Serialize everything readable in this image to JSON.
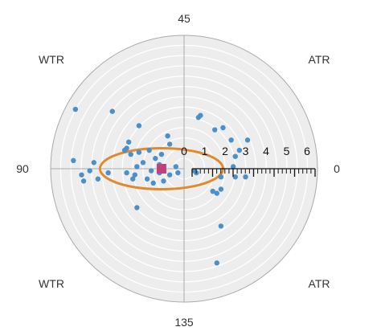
{
  "chart_data": {
    "type": "scatter",
    "title": "",
    "coordinate_system": "polar",
    "radial_ticks": [
      "0",
      "1",
      "2",
      "3",
      "4",
      "5",
      "6"
    ],
    "angle_labels": {
      "top": "45",
      "bottom": "135",
      "left": "90",
      "right": "0"
    },
    "corner_labels": {
      "top_left": "WTR",
      "top_right": "ATR",
      "bottom_left": "WTR",
      "bottom_right": "ATR"
    },
    "colors": {
      "background_disc": "#EDEDED",
      "grid_ring": "#FFFFFF",
      "outer_ring": "#AAAAAA",
      "points": "#4A90C9",
      "centroid": "#C0407C",
      "ellipse": "#E08A30",
      "axis": "#111111"
    },
    "points": [
      [
        -5.3,
        2.9
      ],
      [
        -3.5,
        2.8
      ],
      [
        -2.2,
        2.1
      ],
      [
        -2.7,
        1.3
      ],
      [
        -2.8,
        1.0
      ],
      [
        -2.9,
        0.9
      ],
      [
        -2.6,
        0.7
      ],
      [
        -2.2,
        0.8
      ],
      [
        -1.7,
        0.9
      ],
      [
        -1.4,
        0.5
      ],
      [
        -1.1,
        0.7
      ],
      [
        -0.7,
        1.2
      ],
      [
        -0.8,
        1.6
      ],
      [
        -2.0,
        0.3
      ],
      [
        -2.3,
        0.1
      ],
      [
        -2.4,
        -0.3
      ],
      [
        -2.5,
        -0.5
      ],
      [
        -2.8,
        -0.2
      ],
      [
        -1.8,
        -0.5
      ],
      [
        -1.6,
        -0.1
      ],
      [
        -1.2,
        -0.2
      ],
      [
        -0.4,
        0.1
      ],
      [
        -0.3,
        -0.2
      ],
      [
        -0.7,
        -0.3
      ],
      [
        -1.0,
        -0.6
      ],
      [
        -1.5,
        -0.7
      ],
      [
        -1.2,
        0.2
      ],
      [
        -5.4,
        0.4
      ],
      [
        -4.4,
        0.3
      ],
      [
        -4.6,
        -0.1
      ],
      [
        -5.0,
        -0.3
      ],
      [
        -4.9,
        -0.6
      ],
      [
        -4.2,
        -0.5
      ],
      [
        -3.7,
        -0.2
      ],
      [
        -2.3,
        -1.9
      ],
      [
        0.6,
        -0.2
      ],
      [
        0.5,
        -0.1
      ],
      [
        0.7,
        2.5
      ],
      [
        0.8,
        2.6
      ],
      [
        1.5,
        1.9
      ],
      [
        1.9,
        2.0
      ],
      [
        2.3,
        1.4
      ],
      [
        2.5,
        0.6
      ],
      [
        2.7,
        0.9
      ],
      [
        3.1,
        1.4
      ],
      [
        2.4,
        0.1
      ],
      [
        1.8,
        -0.4
      ],
      [
        1.8,
        -1.0
      ],
      [
        1.4,
        -1.1
      ],
      [
        1.6,
        -1.2
      ],
      [
        2.5,
        -0.4
      ],
      [
        3.0,
        -0.4
      ],
      [
        1.8,
        -2.8
      ],
      [
        1.6,
        -4.6
      ]
    ],
    "centroid": [
      -1.1,
      0.0
    ],
    "ellipse": {
      "center": [
        -1.1,
        0.0
      ],
      "semi_axis_x": 3.0,
      "semi_axis_y": 1.0
    },
    "radial_range": [
      0,
      6
    ]
  }
}
